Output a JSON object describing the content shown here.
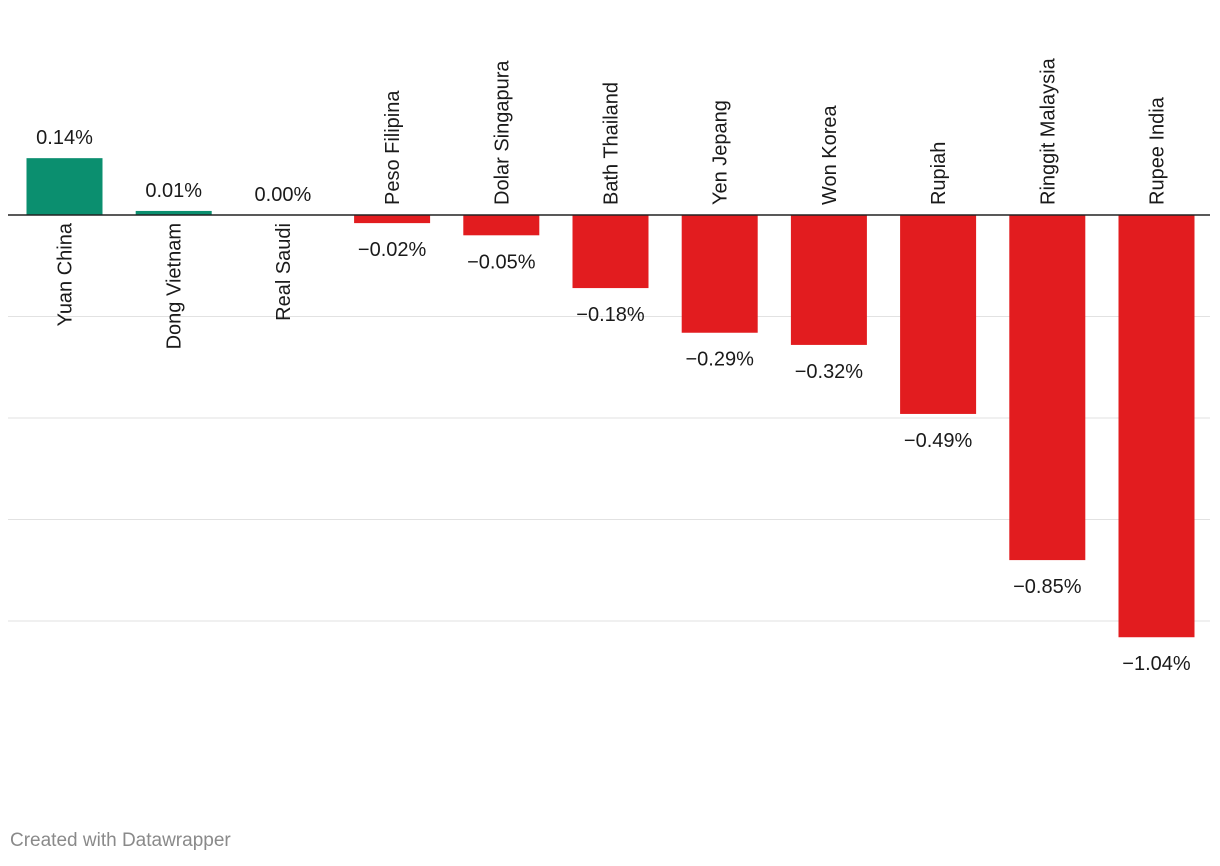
{
  "chart_data": {
    "type": "bar",
    "title": "",
    "xlabel": "",
    "ylabel": "",
    "ylim": [
      -1.04,
      0.14
    ],
    "gridlines": [
      -0.25,
      -0.5,
      -0.75,
      -1.0
    ],
    "categories": [
      "Yuan China",
      "Dong Vietnam",
      "Real Saudi",
      "Peso Filipina",
      "Dolar Singapura",
      "Bath Thailand",
      "Yen Jepang",
      "Won Korea",
      "Rupiah",
      "Ringgit Malaysia",
      "Rupee India"
    ],
    "values": [
      0.14,
      0.01,
      0.0,
      -0.02,
      -0.05,
      -0.18,
      -0.29,
      -0.32,
      -0.49,
      -0.85,
      -1.04
    ],
    "value_labels": [
      "0.14%",
      "0.01%",
      "0.00%",
      "−0.02%",
      "−0.05%",
      "−0.18%",
      "−0.29%",
      "−0.32%",
      "−0.49%",
      "−0.85%",
      "−1.04%"
    ],
    "colors": {
      "positive": "#0b8f6f",
      "negative": "#e21c1f",
      "gridline": "#e2e2e2",
      "baseline": "#222222"
    }
  },
  "footer": {
    "credit": "Created with Datawrapper"
  }
}
